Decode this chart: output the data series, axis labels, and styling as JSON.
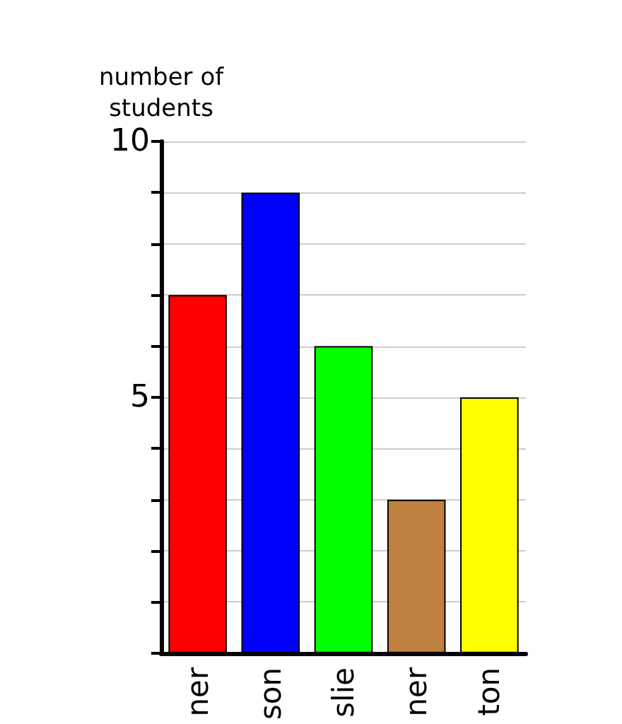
{
  "chart_data": {
    "type": "bar",
    "ylabel": "number of\nstudents",
    "categories": [
      "ner",
      "son",
      "slie",
      "ner",
      "ton"
    ],
    "values": [
      7,
      9,
      6,
      3,
      5
    ],
    "colors": [
      "#ff0000",
      "#0000ff",
      "#00ff00",
      "#c08040",
      "#ffff00"
    ],
    "ylim": [
      0,
      10
    ],
    "yticks": [
      {
        "value": 0,
        "label": null
      },
      {
        "value": 1,
        "label": null
      },
      {
        "value": 2,
        "label": null
      },
      {
        "value": 3,
        "label": null
      },
      {
        "value": 4,
        "label": null
      },
      5,
      {
        "value": 6,
        "label": null
      },
      {
        "value": 7,
        "label": null
      },
      {
        "value": 8,
        "label": null
      },
      {
        "value": 9,
        "label": null
      },
      10
    ],
    "grid": true
  }
}
